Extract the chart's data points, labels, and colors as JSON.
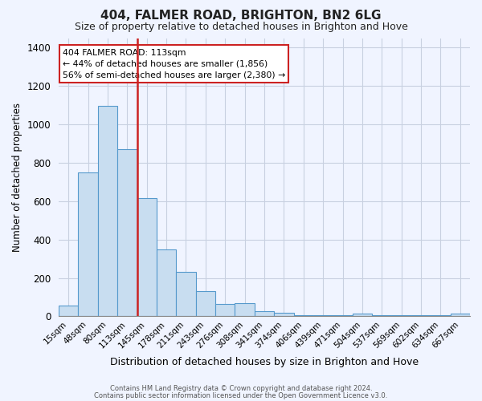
{
  "title": "404, FALMER ROAD, BRIGHTON, BN2 6LG",
  "subtitle": "Size of property relative to detached houses in Brighton and Hove",
  "xlabel": "Distribution of detached houses by size in Brighton and Hove",
  "ylabel": "Number of detached properties",
  "bar_labels": [
    "15sqm",
    "48sqm",
    "80sqm",
    "113sqm",
    "145sqm",
    "178sqm",
    "211sqm",
    "243sqm",
    "276sqm",
    "308sqm",
    "341sqm",
    "374sqm",
    "406sqm",
    "439sqm",
    "471sqm",
    "504sqm",
    "537sqm",
    "569sqm",
    "602sqm",
    "634sqm",
    "667sqm"
  ],
  "bar_values": [
    55,
    750,
    1095,
    870,
    615,
    350,
    230,
    130,
    65,
    70,
    25,
    20,
    5,
    5,
    5,
    15,
    5,
    5,
    5,
    5,
    15
  ],
  "bar_color": "#c8ddf0",
  "bar_edge_color": "#5599cc",
  "vline_x_index": 3,
  "vline_color": "#cc2222",
  "ylim": [
    0,
    1450
  ],
  "yticks": [
    0,
    200,
    400,
    600,
    800,
    1000,
    1200,
    1400
  ],
  "annotation_title": "404 FALMER ROAD: 113sqm",
  "annotation_line1": "← 44% of detached houses are smaller (1,856)",
  "annotation_line2": "56% of semi-detached houses are larger (2,380) →",
  "annotation_box_color": "#ffffff",
  "annotation_box_edge_color": "#cc2222",
  "footer_line1": "Contains HM Land Registry data © Crown copyright and database right 2024.",
  "footer_line2": "Contains public sector information licensed under the Open Government Licence v3.0.",
  "background_color": "#f0f4ff",
  "grid_color": "#c8d0e0",
  "title_fontsize": 11,
  "subtitle_fontsize": 9
}
